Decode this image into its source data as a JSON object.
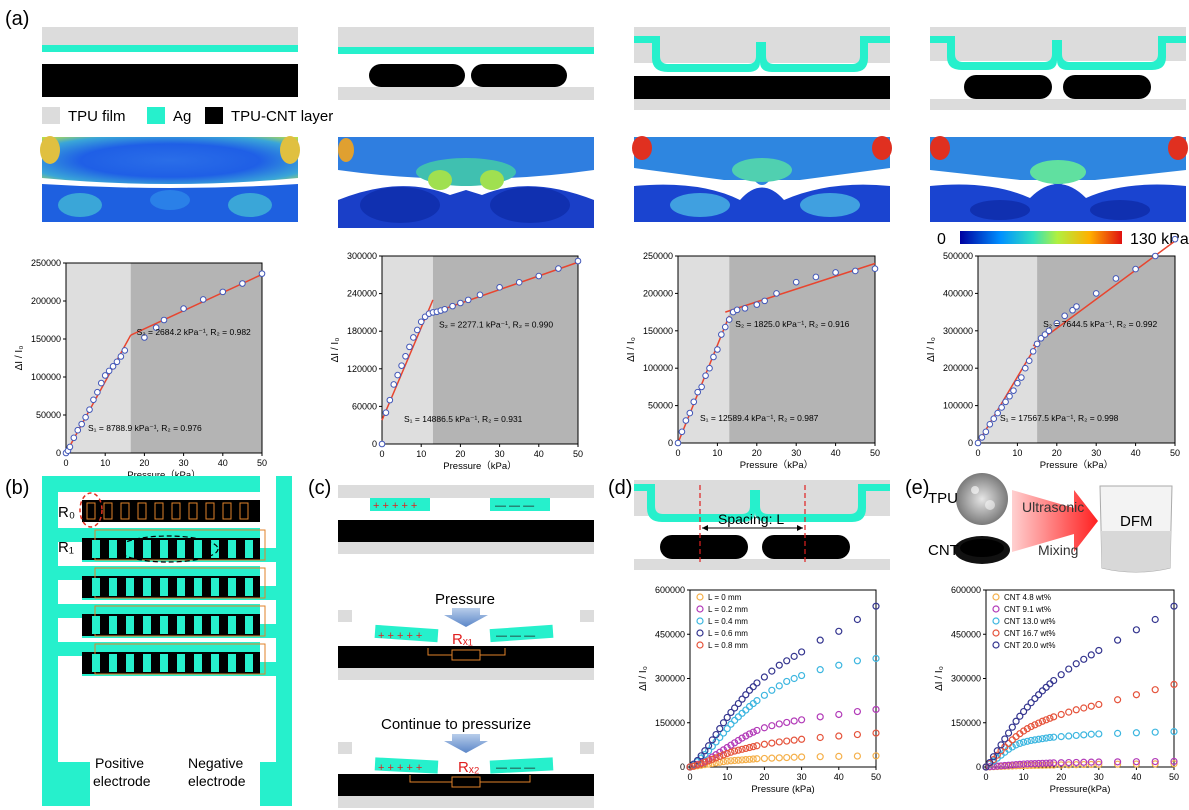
{
  "panel_labels": {
    "a": "(a)",
    "b": "(b)",
    "c": "(c)",
    "d": "(d)",
    "e": "(e)"
  },
  "legend": {
    "tpu": "TPU film",
    "ag": "Ag",
    "cnt": "TPU-CNT layer"
  },
  "colorbar": {
    "min": "0",
    "max": "130 kPa"
  },
  "colors": {
    "tpu": "#dcdcdc",
    "ag": "#26f0cc",
    "cnt": "#000000",
    "fit": "#e8452f",
    "marker": "#4257b8",
    "region1": "#dedede",
    "region2": "#b4b4b4"
  },
  "panel_b": {
    "r0": "R₀",
    "r1": "R₁",
    "pos1": "Positive",
    "pos2": "electrode",
    "neg1": "Negative",
    "neg2": "electrode"
  },
  "panel_c": {
    "pressure": "Pressure",
    "continue": "Continue to pressurize",
    "plus": "+ + + + +",
    "minus": "— — —",
    "rx1": "Rₓ₁",
    "rx2": "Rₓ₂"
  },
  "panel_d": {
    "spacing": "Spacing: L"
  },
  "panel_e": {
    "tpu": "TPU",
    "cnt": "CNT",
    "ultrasonic": "Ultrasonic",
    "mixing": "Mixing",
    "dfm": "DFM"
  },
  "chart_data": [
    {
      "type": "scatter",
      "xlabel": "Pressure（kPa）",
      "ylabel": "ΔI / I₀",
      "xlim": [
        0,
        50
      ],
      "ylim": [
        0,
        250000
      ],
      "xticks": [
        0,
        10,
        20,
        30,
        40,
        50
      ],
      "yticks": [
        0,
        50000,
        100000,
        150000,
        200000,
        250000
      ],
      "split": 16.5,
      "x": [
        0,
        0.5,
        1,
        2,
        3,
        4,
        5,
        6,
        7,
        8,
        9,
        10,
        11,
        12,
        13,
        14,
        15,
        20,
        23,
        25,
        30,
        35,
        40,
        45,
        50
      ],
      "y": [
        0,
        3000,
        8000,
        20000,
        30000,
        38000,
        47000,
        57000,
        70000,
        80000,
        92000,
        102000,
        108000,
        114000,
        120000,
        127000,
        135000,
        152000,
        165000,
        175000,
        190000,
        202000,
        212000,
        223000,
        236000
      ],
      "fit": [
        [
          [
            0,
            0
          ],
          [
            16.5,
            155000
          ]
        ],
        [
          [
            16.5,
            155000
          ],
          [
            50,
            235000
          ]
        ]
      ],
      "annotations": [
        "S₁ = 8788.9 kPa⁻¹, R₂ = 0.976",
        "S₂ = 2684.2 kPa⁻¹, R₂ = 0.982"
      ]
    },
    {
      "type": "scatter",
      "xlabel": "Pressure（kPa）",
      "ylabel": "ΔI / I₀",
      "xlim": [
        0,
        50
      ],
      "ylim": [
        0,
        300000
      ],
      "xticks": [
        0,
        10,
        20,
        30,
        40,
        50
      ],
      "yticks": [
        0,
        60000,
        120000,
        180000,
        240000,
        300000
      ],
      "split": 13,
      "x": [
        0,
        1,
        2,
        3,
        4,
        5,
        6,
        7,
        8,
        9,
        10,
        11,
        12,
        13,
        14,
        15,
        16,
        18,
        20,
        22,
        25,
        30,
        35,
        40,
        45,
        50
      ],
      "y": [
        0,
        50000,
        70000,
        95000,
        110000,
        125000,
        140000,
        155000,
        170000,
        182000,
        195000,
        203000,
        208000,
        210000,
        211000,
        213000,
        215000,
        220000,
        225000,
        230000,
        238000,
        250000,
        258000,
        268000,
        280000,
        292000
      ],
      "fit": [
        [
          [
            0,
            38000
          ],
          [
            13,
            230000
          ]
        ],
        [
          [
            11,
            205000
          ],
          [
            50,
            290000
          ]
        ]
      ],
      "annotations": [
        "S₁ = 14886.5 kPa⁻¹, R₂ = 0.931",
        "S₂ = 2277.1 kPa⁻¹, R₂ = 0.990"
      ]
    },
    {
      "type": "scatter",
      "xlabel": "Pressure（kPa）",
      "ylabel": "ΔI / I₀",
      "xlim": [
        0,
        50
      ],
      "ylim": [
        0,
        250000
      ],
      "xticks": [
        0,
        10,
        20,
        30,
        40,
        50
      ],
      "yticks": [
        0,
        50000,
        100000,
        150000,
        200000,
        250000
      ],
      "split": 13,
      "x": [
        0,
        1,
        2,
        3,
        4,
        5,
        6,
        7,
        8,
        9,
        10,
        11,
        12,
        13,
        14,
        15,
        17,
        20,
        22,
        25,
        30,
        35,
        40,
        45,
        50
      ],
      "y": [
        0,
        15000,
        30000,
        40000,
        55000,
        68000,
        75000,
        90000,
        100000,
        115000,
        125000,
        145000,
        155000,
        165000,
        175000,
        178000,
        180000,
        185000,
        190000,
        200000,
        215000,
        222000,
        228000,
        230000,
        233000
      ],
      "fit": [
        [
          [
            0,
            0
          ],
          [
            13,
            170000
          ]
        ],
        [
          [
            12,
            175000
          ],
          [
            50,
            240000
          ]
        ]
      ],
      "annotations": [
        "S₁ = 12589.4 kPa⁻¹, R₂ = 0.987",
        "S₂ = 1825.0 kPa⁻¹, R₂ = 0.916"
      ]
    },
    {
      "type": "scatter",
      "xlabel": "Pressure（kPa）",
      "ylabel": "ΔI / I₀",
      "xlim": [
        0,
        50
      ],
      "ylim": [
        0,
        500000
      ],
      "xticks": [
        0,
        10,
        20,
        30,
        40,
        50
      ],
      "yticks": [
        0,
        100000,
        200000,
        300000,
        400000,
        500000
      ],
      "split": 15,
      "x": [
        0,
        1,
        2,
        3,
        4,
        5,
        6,
        7,
        8,
        9,
        10,
        11,
        12,
        13,
        14,
        15,
        16,
        17,
        18,
        20,
        22,
        24,
        25,
        30,
        35,
        40,
        45,
        50
      ],
      "y": [
        0,
        15000,
        30000,
        50000,
        65000,
        80000,
        95000,
        110000,
        125000,
        140000,
        160000,
        175000,
        200000,
        220000,
        245000,
        265000,
        280000,
        290000,
        300000,
        320000,
        340000,
        355000,
        365000,
        400000,
        440000,
        465000,
        500000,
        545000
      ],
      "fit": [
        [
          [
            0,
            0
          ],
          [
            15,
            265000
          ]
        ],
        [
          [
            14,
            260000
          ],
          [
            50,
            540000
          ]
        ]
      ],
      "annotations": [
        "S₁ = 17567.5 kPa⁻¹, R₂ = 0.998",
        "S₂ = 7644.5 kPa⁻¹, R₂ = 0.992"
      ]
    },
    {
      "type": "scatter",
      "xlabel": "Pressure (kPa)",
      "ylabel": "ΔI / I₀",
      "xlim": [
        0,
        50
      ],
      "ylim": [
        0,
        600000
      ],
      "xticks": [
        0,
        10,
        20,
        30,
        40,
        50
      ],
      "yticks": [
        0,
        150000,
        300000,
        450000,
        600000
      ],
      "x": [
        0,
        1,
        2,
        3,
        4,
        5,
        6,
        7,
        8,
        9,
        10,
        11,
        12,
        13,
        14,
        15,
        16,
        17,
        18,
        20,
        22,
        24,
        26,
        28,
        30,
        35,
        40,
        45,
        50
      ],
      "series": [
        {
          "name": "L = 0 mm",
          "color": "#f5b04a",
          "y": [
            0,
            2000,
            4000,
            6000,
            8000,
            10000,
            12000,
            14000,
            16000,
            18000,
            20000,
            21000,
            22000,
            23000,
            24000,
            25000,
            26000,
            27000,
            28000,
            29000,
            30000,
            31000,
            32000,
            33000,
            34000,
            35000,
            36000,
            37000,
            38000
          ]
        },
        {
          "name": "L = 0.2 mm",
          "color": "#b23ab8",
          "y": [
            0,
            4000,
            9000,
            14000,
            20000,
            27000,
            34000,
            42000,
            50000,
            58000,
            66000,
            74000,
            82000,
            90000,
            98000,
            105000,
            112000,
            118000,
            124000,
            133000,
            140000,
            146000,
            151000,
            156000,
            160000,
            170000,
            178000,
            188000,
            195000
          ]
        },
        {
          "name": "L = 0.4 mm",
          "color": "#3cb6e0",
          "y": [
            0,
            8000,
            18000,
            30000,
            42000,
            55000,
            70000,
            85000,
            100000,
            115000,
            130000,
            145000,
            158000,
            170000,
            182000,
            193000,
            205000,
            215000,
            225000,
            243000,
            260000,
            275000,
            290000,
            300000,
            310000,
            330000,
            345000,
            360000,
            368000
          ]
        },
        {
          "name": "L = 0.6 mm",
          "color": "#34358f",
          "y": [
            0,
            10000,
            22000,
            38000,
            55000,
            72000,
            92000,
            110000,
            130000,
            150000,
            168000,
            185000,
            200000,
            215000,
            230000,
            245000,
            260000,
            272000,
            285000,
            305000,
            325000,
            345000,
            360000,
            375000,
            390000,
            430000,
            460000,
            500000,
            545000
          ]
        },
        {
          "name": "L = 0.8 mm",
          "color": "#e5533b",
          "y": [
            0,
            3000,
            7000,
            11000,
            16000,
            21000,
            26000,
            31000,
            36000,
            41000,
            46000,
            50000,
            54000,
            57000,
            60000,
            63000,
            66000,
            69000,
            72000,
            77000,
            81000,
            85000,
            88000,
            91000,
            94000,
            100000,
            105000,
            110000,
            115000
          ]
        }
      ]
    },
    {
      "type": "scatter",
      "xlabel": "Pressure(kPa)",
      "ylabel": "ΔI / I₀",
      "xlim": [
        0,
        50
      ],
      "ylim": [
        0,
        600000
      ],
      "xticks": [
        0,
        10,
        20,
        30,
        40,
        50
      ],
      "yticks": [
        0,
        150000,
        300000,
        450000,
        600000
      ],
      "x": [
        0,
        1,
        2,
        3,
        4,
        5,
        6,
        7,
        8,
        9,
        10,
        11,
        12,
        13,
        14,
        15,
        16,
        17,
        18,
        20,
        22,
        24,
        26,
        28,
        30,
        35,
        40,
        45,
        50
      ],
      "series": [
        {
          "name": "CNT 4.8 wt%",
          "color": "#f5b04a",
          "y": [
            0,
            500,
            1000,
            1500,
            2000,
            2500,
            3000,
            3500,
            4000,
            4500,
            5000,
            5200,
            5400,
            5600,
            5800,
            6000,
            6200,
            6400,
            6600,
            7000,
            7400,
            7800,
            8200,
            8600,
            9000,
            9500,
            10000,
            10500,
            11000
          ]
        },
        {
          "name": "CNT 9.1 wt%",
          "color": "#b23ab8",
          "y": [
            0,
            1000,
            2000,
            3000,
            4000,
            5000,
            6000,
            7000,
            8000,
            9000,
            10000,
            10500,
            11000,
            11500,
            12000,
            12500,
            13000,
            13500,
            14000,
            14500,
            15000,
            15500,
            16000,
            16500,
            17000,
            17500,
            18000,
            18500,
            19000
          ]
        },
        {
          "name": "CNT 13.0 wt%",
          "color": "#3cb6e0",
          "y": [
            0,
            10000,
            20000,
            30000,
            40000,
            50000,
            60000,
            68000,
            75000,
            80000,
            84000,
            87000,
            90000,
            92000,
            94000,
            96000,
            98000,
            100000,
            101000,
            103000,
            105000,
            107000,
            109000,
            111000,
            112000,
            114000,
            116000,
            118000,
            120000
          ]
        },
        {
          "name": "CNT 16.7 wt%",
          "color": "#e5533b",
          "y": [
            0,
            12000,
            25000,
            40000,
            55000,
            68000,
            80000,
            92000,
            103000,
            113000,
            122000,
            130000,
            137000,
            143000,
            149000,
            155000,
            160000,
            165000,
            170000,
            178000,
            186000,
            194000,
            200000,
            206000,
            212000,
            228000,
            245000,
            262000,
            280000
          ]
        },
        {
          "name": "CNT 20.0 wt%",
          "color": "#34358f",
          "y": [
            0,
            15000,
            35000,
            55000,
            75000,
            95000,
            115000,
            135000,
            155000,
            172000,
            188000,
            203000,
            218000,
            232000,
            245000,
            258000,
            270000,
            282000,
            293000,
            313000,
            332000,
            350000,
            365000,
            380000,
            395000,
            430000,
            465000,
            500000,
            545000
          ]
        }
      ]
    }
  ]
}
